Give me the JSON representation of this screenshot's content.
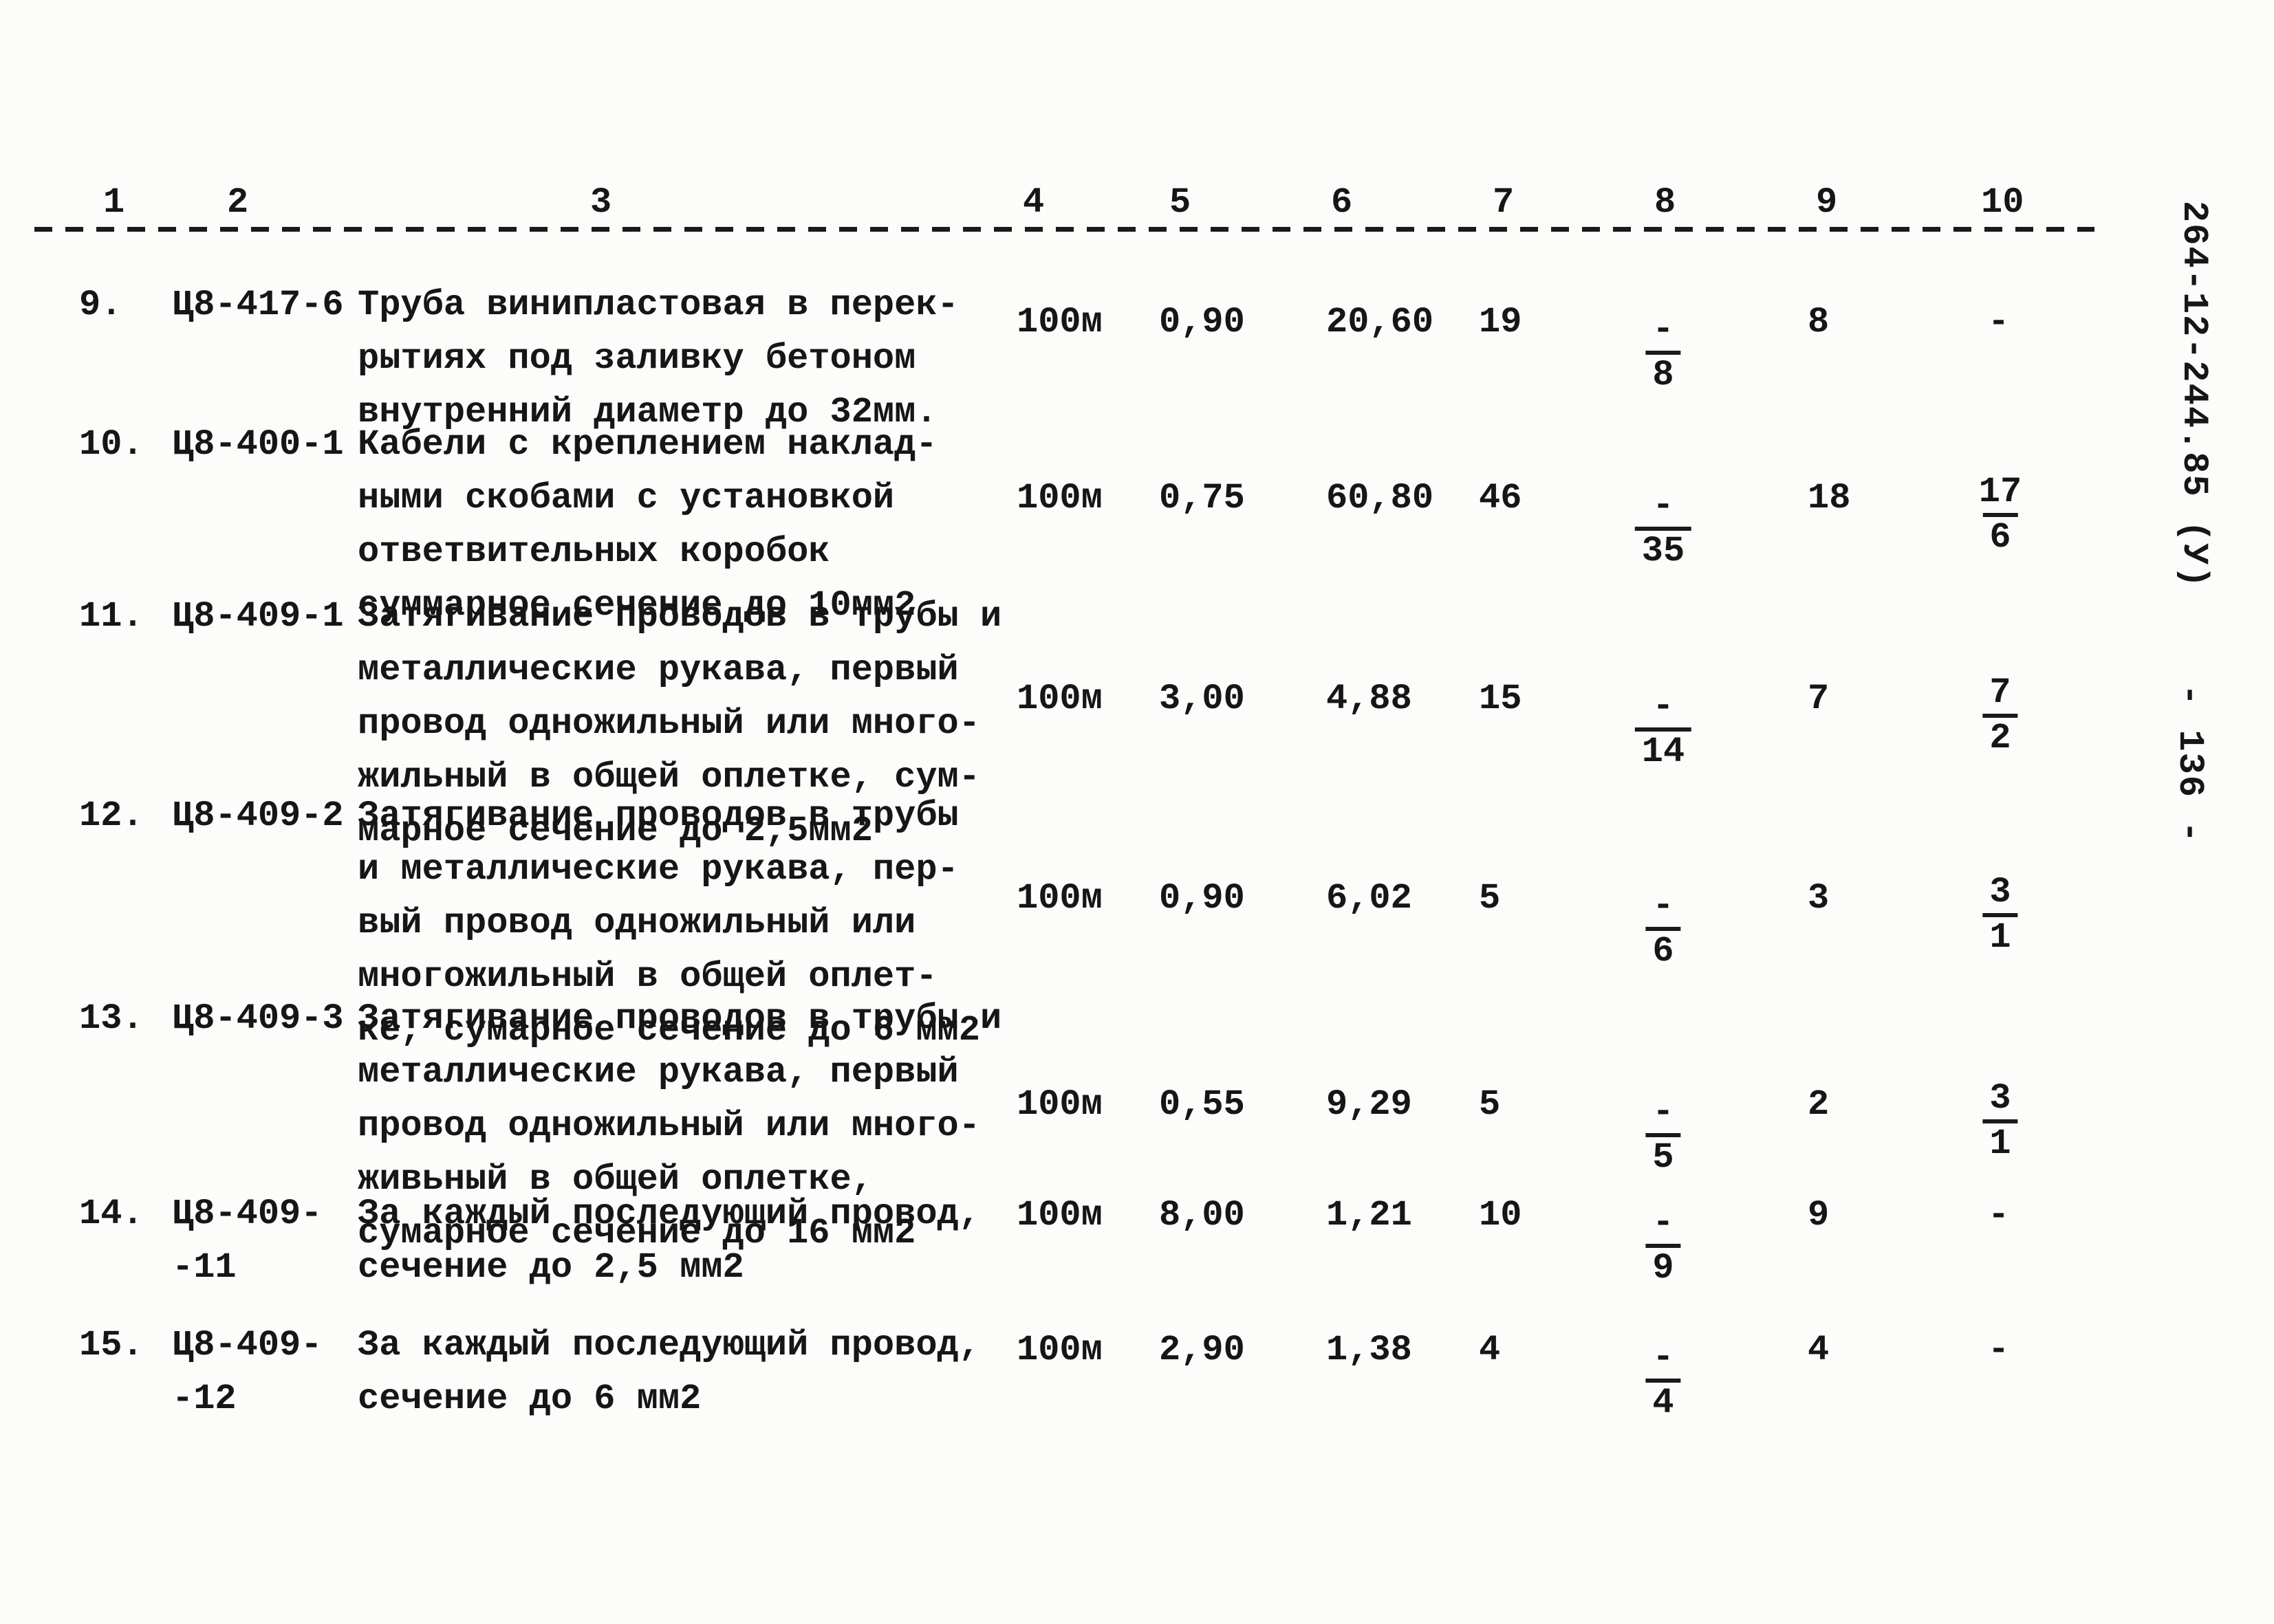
{
  "page": {
    "doc_code_vertical": "264-12-244.85 (У)",
    "page_number_vertical": "- 136 -"
  },
  "table": {
    "columns": [
      "1",
      "2",
      "3",
      "4",
      "5",
      "6",
      "7",
      "8",
      "9",
      "10"
    ],
    "rows": [
      {
        "no": "9.",
        "code": [
          "Ц8-417-6"
        ],
        "desc": [
          "Труба винипластовая в перек-",
          "рытиях под заливку бетоном",
          "внутренний диаметр до 32мм."
        ],
        "unit": "100м",
        "col5": "0,90",
        "col6": "20,60",
        "col7": "19",
        "col8": {
          "num": "-",
          "den": "8"
        },
        "col9": "8",
        "col10": "-"
      },
      {
        "no": "10.",
        "code": [
          "Ц8-400-1"
        ],
        "desc": [
          "Кабели с креплением наклад-",
          "ными скобами с установкой",
          "ответвительных коробок",
          "суммарное сечение до 10мм2"
        ],
        "unit": "100м",
        "col5": "0,75",
        "col6": "60,80",
        "col7": "46",
        "col8": {
          "num": "-",
          "den": "35"
        },
        "col9": "18",
        "col10": {
          "num": "17",
          "den": "6"
        }
      },
      {
        "no": "11.",
        "code": [
          "Ц8-409-1"
        ],
        "desc": [
          "Затягивание проводов в трубы и",
          "металлические рукава, первый",
          "провод одножильный или много-",
          "жильный в общей оплетке, сум-",
          "марное сечение до 2,5мм2"
        ],
        "unit": "100м",
        "col5": "3,00",
        "col6": "4,88",
        "col7": "15",
        "col8": {
          "num": "-",
          "den": "14"
        },
        "col9": "7",
        "col10": {
          "num": "7",
          "den": "2"
        }
      },
      {
        "no": "12.",
        "code": [
          "Ц8-409-2"
        ],
        "desc": [
          "Затягивание проводов в трубы",
          "и металлические рукава, пер-",
          "вый провод одножильный или",
          "многожильный в общей оплет-",
          "ке, сумарное сечение до 6 мм2"
        ],
        "unit": "100м",
        "col5": "0,90",
        "col6": "6,02",
        "col7": "5",
        "col8": {
          "num": "-",
          "den": "6"
        },
        "col9": "3",
        "col10": {
          "num": "3",
          "den": "1"
        }
      },
      {
        "no": "13.",
        "code": [
          "Ц8-409-3"
        ],
        "desc": [
          "Затягивание проводов в трубы и",
          "металлические рукава, первый",
          "провод одножильный или много-",
          "живьный в общей оплетке,",
          "сумарное сечение до 16 мм2"
        ],
        "unit": "100м",
        "col5": "0,55",
        "col6": "9,29",
        "col7": "5",
        "col8": {
          "num": "-",
          "den": "5"
        },
        "col9": "2",
        "col10": {
          "num": "3",
          "den": "1"
        }
      },
      {
        "no": "14.",
        "code": [
          "Ц8-409-",
          "-11"
        ],
        "desc": [
          "За каждый последующий провод,",
          "сечение до 2,5 мм2"
        ],
        "unit": "100м",
        "col5": "8,00",
        "col6": "1,21",
        "col7": "10",
        "col8": {
          "num": "-",
          "den": "9"
        },
        "col9": "9",
        "col10": "-"
      },
      {
        "no": "15.",
        "code": [
          "Ц8-409-",
          "-12"
        ],
        "desc": [
          "За каждый последующий провод,",
          "сечение до 6 мм2"
        ],
        "unit": "100м",
        "col5": "2,90",
        "col6": "1,38",
        "col7": "4",
        "col8": {
          "num": "-",
          "den": "4"
        },
        "col9": "4",
        "col10": "-"
      }
    ]
  }
}
